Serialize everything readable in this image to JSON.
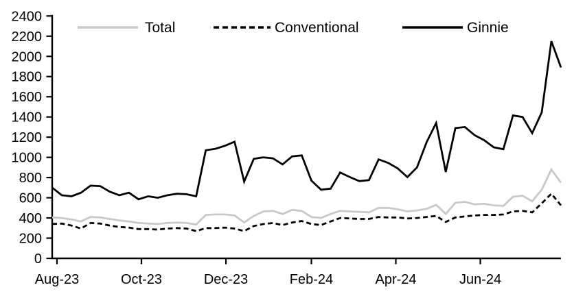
{
  "chart_data": {
    "type": "line",
    "title": "",
    "xlabel": "",
    "ylabel": "",
    "grid": false,
    "legend_position": "top-inside",
    "ylim": [
      0,
      2400
    ],
    "y_tick_step": 200,
    "y_tick_labels": [
      "0",
      "200",
      "400",
      "600",
      "800",
      "1000",
      "1200",
      "1400",
      "1600",
      "1800",
      "2000",
      "2200",
      "2400"
    ],
    "x_tick_labels": [
      "Aug-23",
      "Oct-23",
      "Dec-23",
      "Feb-24",
      "Apr-24",
      "Jun-24"
    ],
    "x_tick_week_positions": [
      0.5,
      9.3,
      18.1,
      27.0,
      35.8,
      44.6
    ],
    "x_unit": "week",
    "n_points": 54,
    "series": [
      {
        "name": "Total",
        "color": "#c9c9c9",
        "dash": "solid",
        "values": [
          405,
          400,
          385,
          365,
          410,
          405,
          390,
          375,
          365,
          350,
          345,
          340,
          350,
          355,
          350,
          335,
          430,
          435,
          435,
          425,
          355,
          420,
          465,
          470,
          440,
          480,
          470,
          410,
          400,
          440,
          470,
          465,
          460,
          455,
          500,
          500,
          485,
          465,
          475,
          490,
          530,
          440,
          550,
          560,
          535,
          540,
          525,
          520,
          610,
          620,
          565,
          680,
          880,
          750
        ]
      },
      {
        "name": "Conventional",
        "color": "#000000",
        "dash": "dashed",
        "values": [
          340,
          345,
          325,
          295,
          350,
          345,
          325,
          310,
          305,
          290,
          290,
          285,
          295,
          300,
          295,
          270,
          300,
          300,
          305,
          295,
          270,
          320,
          340,
          350,
          330,
          355,
          370,
          340,
          330,
          365,
          400,
          395,
          390,
          390,
          410,
          405,
          405,
          395,
          400,
          410,
          420,
          360,
          405,
          415,
          425,
          430,
          430,
          435,
          465,
          470,
          455,
          545,
          640,
          525
        ]
      },
      {
        "name": "Ginnie",
        "color": "#000000",
        "dash": "solid",
        "values": [
          700,
          625,
          615,
          650,
          720,
          715,
          660,
          625,
          650,
          585,
          615,
          600,
          625,
          640,
          635,
          615,
          1070,
          1085,
          1115,
          1155,
          760,
          985,
          1000,
          990,
          930,
          1010,
          1020,
          770,
          680,
          690,
          850,
          805,
          765,
          775,
          980,
          945,
          890,
          805,
          900,
          1150,
          1340,
          855,
          1290,
          1300,
          1220,
          1170,
          1100,
          1080,
          1415,
          1400,
          1240,
          1445,
          2150,
          1890
        ]
      }
    ]
  }
}
